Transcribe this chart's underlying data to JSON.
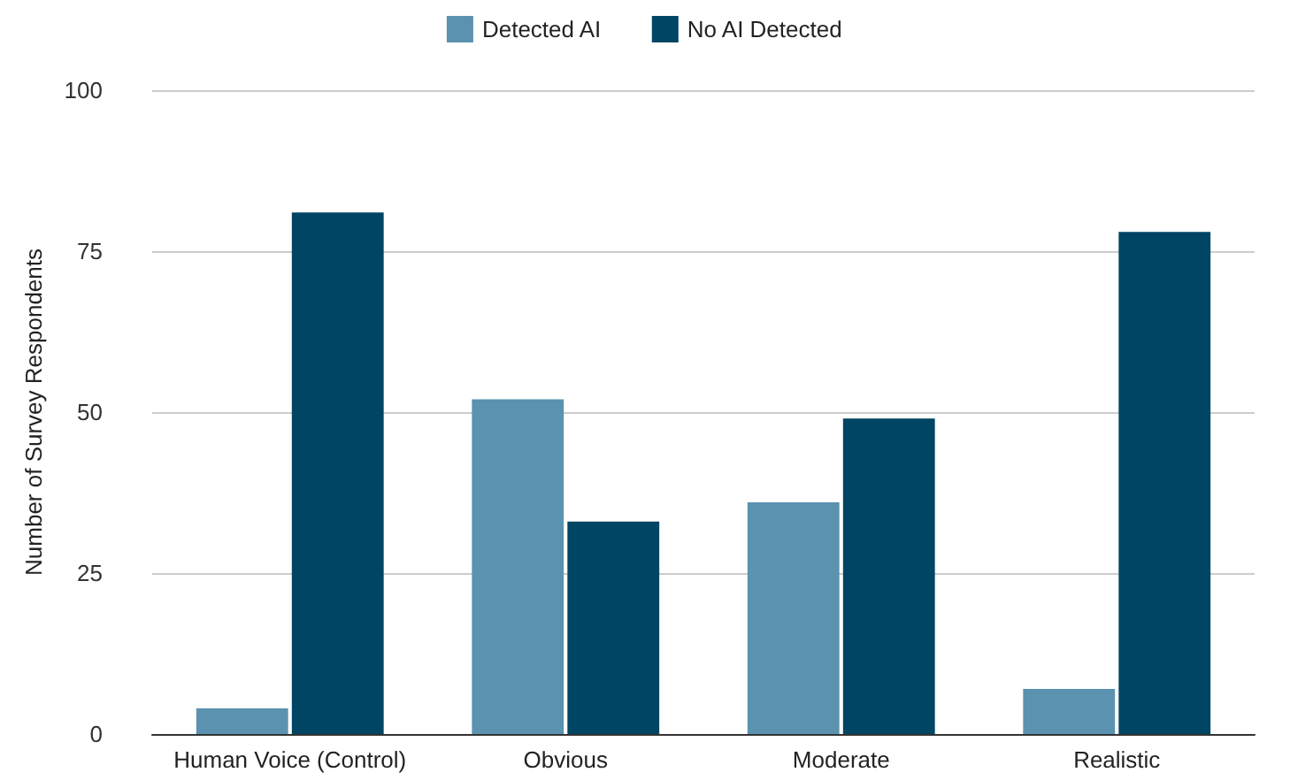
{
  "chart_data": {
    "type": "bar",
    "ylabel": "Number of Survey Respondents",
    "categories": [
      "Human Voice (Control)",
      "Obvious",
      "Moderate",
      "Realistic"
    ],
    "series": [
      {
        "name": "Detected AI",
        "color": "#5b92b0",
        "values": [
          4,
          52,
          36,
          7
        ]
      },
      {
        "name": "No AI Detected",
        "color": "#004563",
        "values": [
          81,
          33,
          49,
          78
        ]
      }
    ],
    "ylim": [
      0,
      100
    ],
    "yticks": [
      0,
      25,
      50,
      75,
      100
    ],
    "grid": "y",
    "legend": "top"
  }
}
